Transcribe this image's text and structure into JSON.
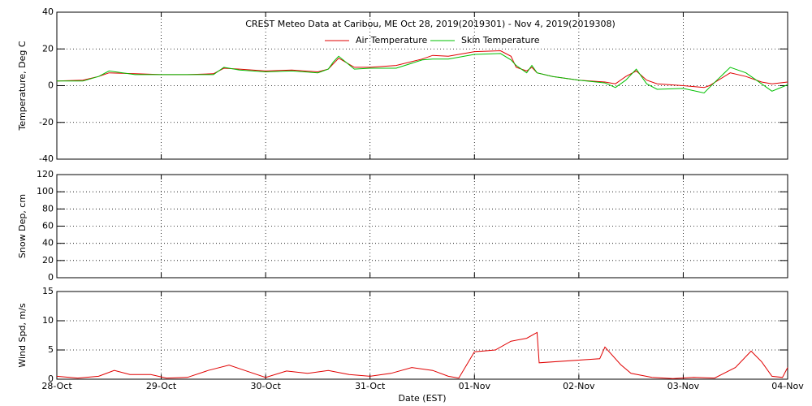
{
  "chart_data": [
    {
      "type": "line",
      "title": "CREST Meteo Data at Caribou, ME   Oct 28, 2019(2019301) - Nov  4, 2019(2019308)",
      "ylabel": "Temperature, Deg C",
      "x": [
        0,
        0.25,
        0.4,
        0.5,
        0.75,
        1.0,
        1.25,
        1.5,
        1.6,
        1.75,
        2.0,
        2.25,
        2.5,
        2.6,
        2.65,
        2.7,
        2.85,
        3.0,
        3.25,
        3.5,
        3.6,
        3.75,
        4.0,
        4.25,
        4.35,
        4.4,
        4.5,
        4.55,
        4.6,
        4.75,
        5.0,
        5.25,
        5.35,
        5.45,
        5.55,
        5.65,
        5.75,
        6.0,
        6.2,
        6.25,
        6.45,
        6.6,
        6.75,
        6.85,
        7.0
      ],
      "series": [
        {
          "name": "Air Temperature",
          "color": "#e00000",
          "values": [
            2.5,
            3,
            5,
            7,
            6.5,
            6,
            6,
            6.5,
            9.5,
            9,
            8,
            8.5,
            7.5,
            9,
            12,
            15,
            10,
            10,
            11,
            14.5,
            16.5,
            16,
            18.5,
            19,
            16,
            10,
            8,
            10,
            7,
            5,
            3,
            2,
            1,
            5,
            8,
            3,
            1,
            0,
            -1,
            0,
            7,
            5,
            2,
            1,
            2
          ]
        },
        {
          "name": "Skin Temperature",
          "color": "#00c000",
          "values": [
            2.5,
            2.5,
            5,
            8,
            6,
            6,
            6,
            6,
            10,
            8.5,
            7.5,
            8,
            7,
            9,
            13,
            16,
            9,
            9.5,
            9.5,
            14,
            14.5,
            14.5,
            17,
            17.5,
            14,
            11,
            7,
            11,
            7,
            5,
            3,
            1.5,
            -1,
            3,
            9,
            1,
            -2,
            -1.5,
            -4,
            -1,
            10,
            7,
            1,
            -3,
            0.5
          ]
        }
      ],
      "xlim": [
        0,
        7
      ],
      "xticks": [
        0,
        1,
        2,
        3,
        4,
        5,
        6,
        7
      ],
      "ylim": [
        -40,
        40
      ],
      "yticks": [
        -40,
        -20,
        0,
        20,
        40
      ],
      "grid": true
    },
    {
      "type": "line",
      "ylabel": "Snow Dep, cm",
      "xlim": [
        0,
        7
      ],
      "xticks": [
        0,
        1,
        2,
        3,
        4,
        5,
        6,
        7
      ],
      "ylim": [
        0,
        120
      ],
      "yticks": [
        0,
        20,
        40,
        60,
        80,
        100,
        120
      ],
      "grid": true
    },
    {
      "type": "line",
      "ylabel": "Wind Spd, m/s",
      "xlabel": "Date (EST)",
      "x": [
        0,
        0.2,
        0.4,
        0.55,
        0.7,
        0.9,
        1.05,
        1.25,
        1.45,
        1.65,
        1.8,
        2.0,
        2.2,
        2.4,
        2.6,
        2.8,
        3.0,
        3.2,
        3.4,
        3.6,
        3.75,
        3.85,
        4.0,
        4.2,
        4.35,
        4.5,
        4.6,
        4.62,
        5.2,
        5.25,
        5.4,
        5.5,
        5.7,
        5.9,
        6.1,
        6.3,
        6.5,
        6.65,
        6.75,
        6.85,
        6.95,
        7.0
      ],
      "series": [
        {
          "name": null,
          "color": "#e00000",
          "values": [
            0.5,
            0.2,
            0.5,
            1.5,
            0.8,
            0.8,
            0.2,
            0.3,
            1.5,
            2.4,
            1.5,
            0.3,
            1.4,
            1.0,
            1.5,
            0.8,
            0.5,
            1.0,
            2.0,
            1.5,
            0.5,
            0.2,
            4.7,
            5.0,
            6.5,
            7.0,
            8.0,
            2.8,
            3.5,
            5.5,
            2.5,
            1.0,
            0.3,
            0.1,
            0.3,
            0.2,
            2.0,
            4.8,
            3.0,
            0.5,
            0.3,
            2.0
          ]
        }
      ],
      "xlim": [
        0,
        7
      ],
      "xticks": [
        {
          "value": 0,
          "label": "28-Oct"
        },
        {
          "value": 1,
          "label": "29-Oct"
        },
        {
          "value": 2,
          "label": "30-Oct"
        },
        {
          "value": 3,
          "label": "31-Oct"
        },
        {
          "value": 4,
          "label": "01-Nov"
        },
        {
          "value": 5,
          "label": "02-Nov"
        },
        {
          "value": 6,
          "label": "03-Nov"
        },
        {
          "value": 7,
          "label": "04-Nov"
        }
      ],
      "ylim": [
        0,
        15
      ],
      "yticks": [
        0,
        5,
        10,
        15
      ],
      "grid": true
    }
  ]
}
